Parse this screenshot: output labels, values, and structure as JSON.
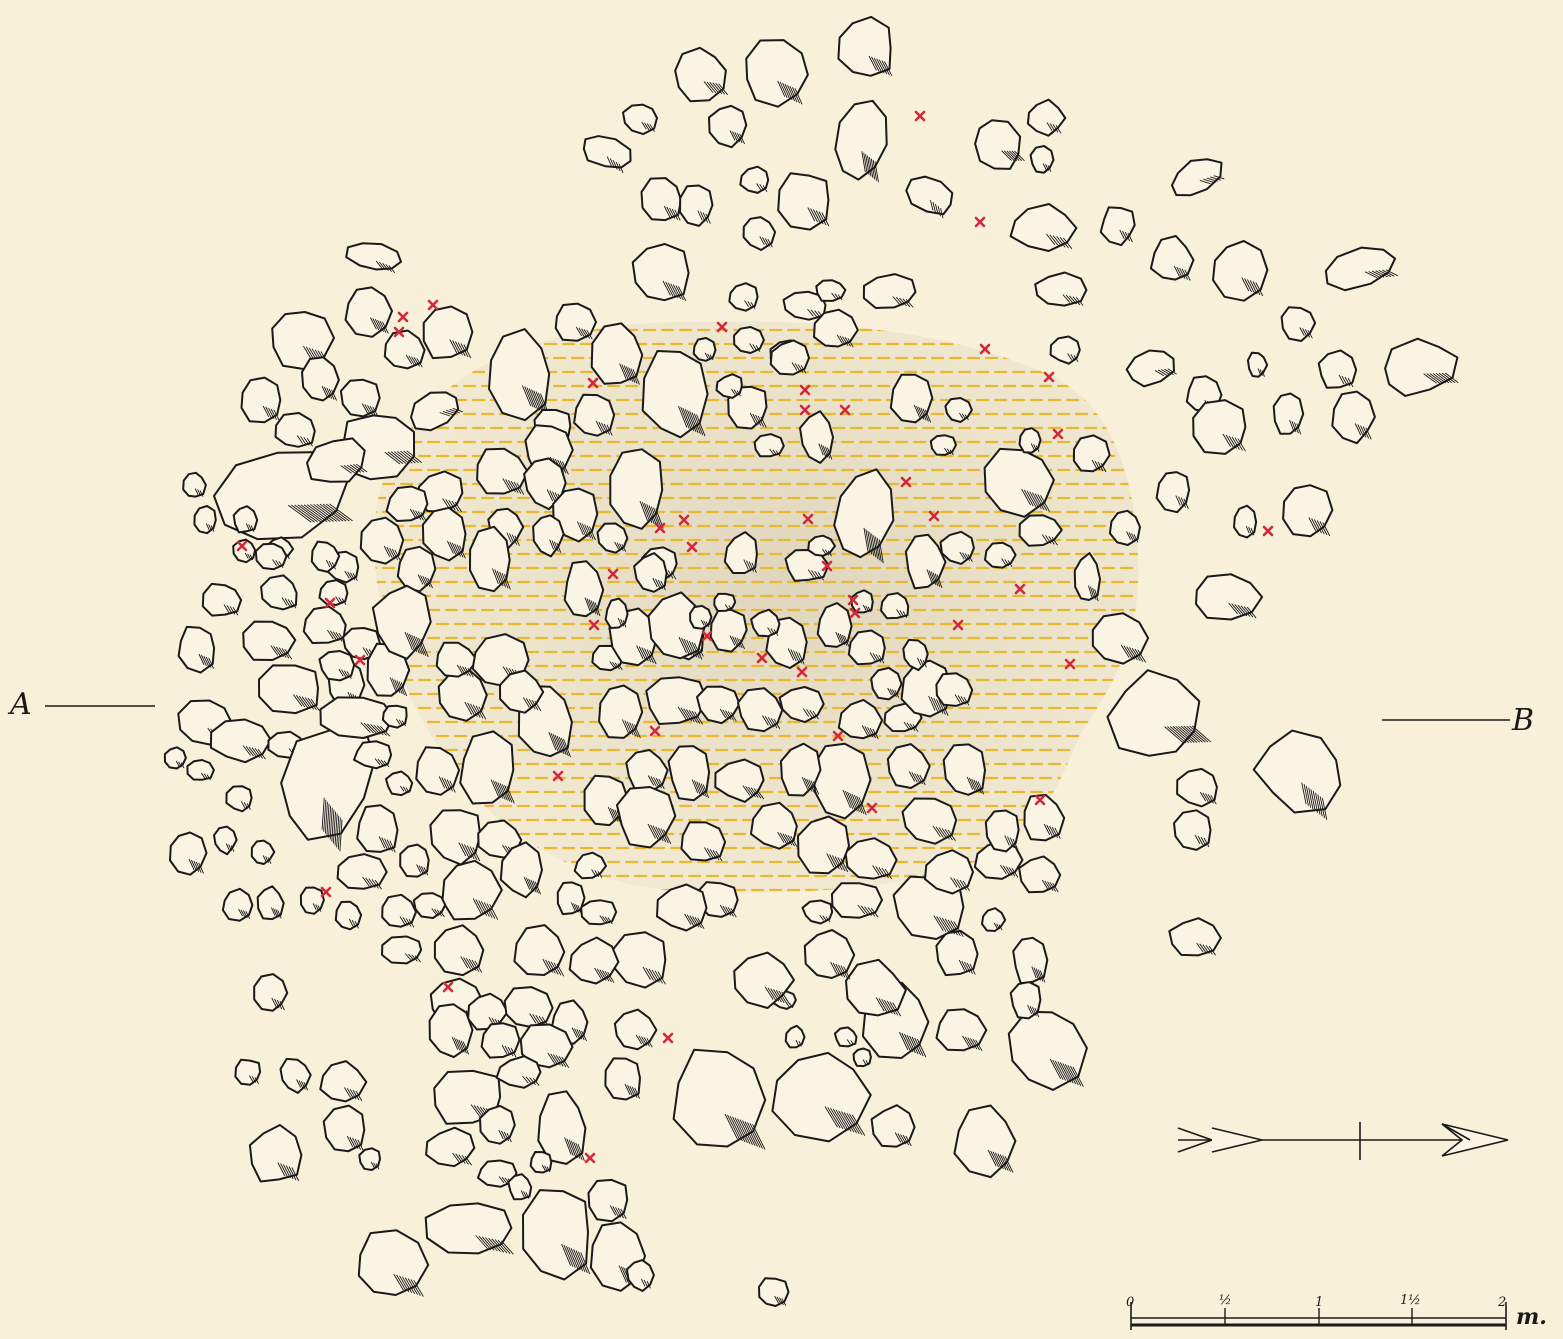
{
  "section": {
    "start_label": "A",
    "end_label": "B"
  },
  "scale_bar": {
    "ticks": [
      "0",
      "½",
      "1",
      "1½",
      "2"
    ],
    "unit": "m."
  },
  "north_arrow": {
    "icon": "north-arrow-icon"
  },
  "colors": {
    "paper": "#f8f0d8",
    "ink": "#1a1a1a",
    "stone_fill": "#faf4e4",
    "stain_wash": "#e4dbc2",
    "hatch": "#e8b830",
    "find_marker": "#d2283c"
  },
  "legend_items": [
    {
      "name": "stone",
      "icon": "stone-icon"
    },
    {
      "name": "find-spot",
      "icon": "red-cross-icon"
    },
    {
      "name": "stained-area",
      "icon": "yellow-hatch-icon"
    }
  ]
}
